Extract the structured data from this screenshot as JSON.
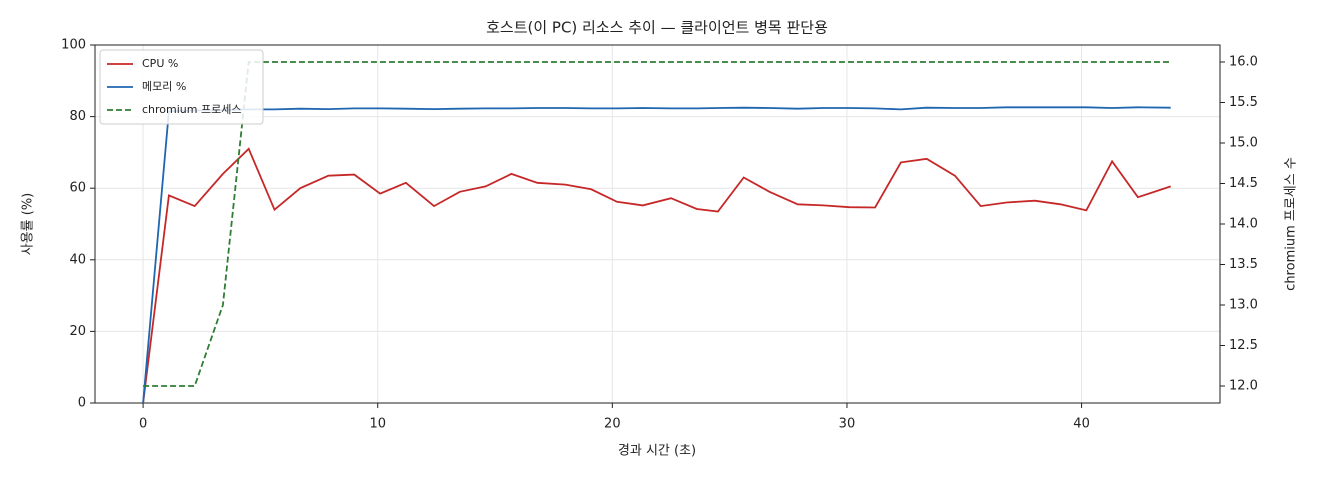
{
  "chart_data": {
    "type": "line",
    "title": "호스트(이 PC) 리소스 추이 — 클라이언트 병목 판단용",
    "xlabel": "경과 시간 (초)",
    "ylabel": "사용률 (%)",
    "y2label": "chromium 프로세스 수",
    "x": [
      0,
      1.1,
      2.2,
      3.4,
      4.5,
      5.6,
      6.7,
      7.9,
      9.0,
      10.1,
      11.2,
      12.4,
      13.5,
      14.6,
      15.7,
      16.8,
      18.0,
      19.1,
      20.2,
      21.3,
      22.5,
      23.6,
      24.5,
      25.6,
      26.7,
      27.9,
      29.0,
      30.1,
      31.2,
      32.3,
      33.4,
      34.6,
      35.7,
      36.8,
      38.0,
      39.1,
      40.2,
      41.3,
      42.4,
      43.8
    ],
    "series": [
      {
        "name": "CPU %",
        "color": "#c62828",
        "values": [
          0,
          58,
          55,
          64,
          71,
          54,
          60,
          63.5,
          63.8,
          58.5,
          61.5,
          55,
          59,
          60.5,
          64,
          61.5,
          61,
          59.7,
          56.2,
          55.2,
          57.2,
          54.2,
          53.5,
          63,
          59,
          55.5,
          55.2,
          54.7,
          54.6,
          67.2,
          68.2,
          63.5,
          55,
          56,
          56.5,
          55.5,
          53.8,
          67.5,
          57.5,
          60.5
        ]
      },
      {
        "name": "메모리 %",
        "color": "#1f66b0",
        "values": [
          0,
          81.5,
          81.7,
          81.8,
          82,
          82,
          82.2,
          82.1,
          82.3,
          82.3,
          82.2,
          82.1,
          82.2,
          82.3,
          82.3,
          82.4,
          82.4,
          82.3,
          82.3,
          82.4,
          82.3,
          82.3,
          82.4,
          82.5,
          82.4,
          82.2,
          82.4,
          82.4,
          82.3,
          82,
          82.5,
          82.4,
          82.4,
          82.6,
          82.6,
          82.6,
          82.6,
          82.4,
          82.6,
          82.5
        ]
      },
      {
        "name": "chromium 프로세스",
        "color": "#2e7d32",
        "dashed": true,
        "axis": "y2",
        "values": [
          12,
          12,
          12,
          13,
          16,
          16,
          16,
          16,
          16,
          16,
          16,
          16,
          16,
          16,
          16,
          16,
          16,
          16,
          16,
          16,
          16,
          16,
          16,
          16,
          16,
          16,
          16,
          16,
          16,
          16,
          16,
          16,
          16,
          16,
          16,
          16,
          16,
          16,
          16,
          16
        ]
      }
    ],
    "xlim": [
      -2.05,
      45.9
    ],
    "xticks": [
      0,
      10,
      20,
      30,
      40
    ],
    "ylim": [
      0,
      100
    ],
    "yticks": [
      0,
      20,
      40,
      60,
      80,
      100
    ],
    "y2lim": [
      11.79,
      16.21
    ],
    "y2ticks": [
      {
        "value": 12,
        "label": "12.0"
      },
      {
        "value": 12.5,
        "label": "12.5"
      },
      {
        "value": 13,
        "label": "13.0"
      },
      {
        "value": 13.5,
        "label": "13.5"
      },
      {
        "value": 14,
        "label": "14.0"
      },
      {
        "value": 14.5,
        "label": "14.5"
      },
      {
        "value": 15,
        "label": "15.0"
      },
      {
        "value": 15.5,
        "label": "15.5"
      },
      {
        "value": 16,
        "label": "16.0"
      }
    ],
    "grid": true,
    "legend": "upper left"
  }
}
